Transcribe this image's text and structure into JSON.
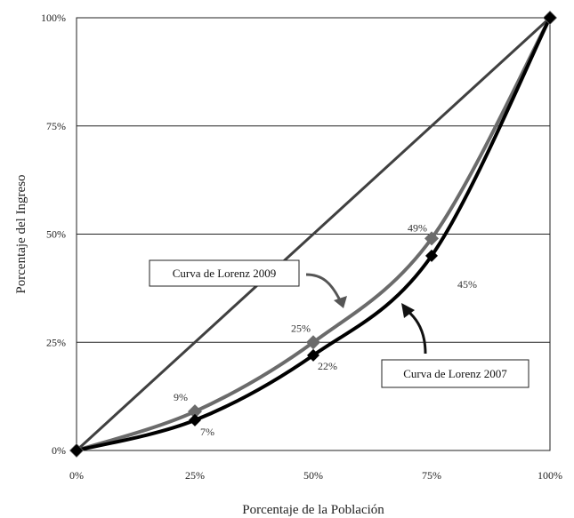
{
  "chart_data": {
    "type": "line",
    "title": "",
    "xlabel": "Porcentaje de la Población",
    "ylabel": "Porcentaje del Ingreso",
    "xlim": [
      0,
      100
    ],
    "ylim": [
      0,
      100
    ],
    "x_ticks": [
      0,
      25,
      50,
      75,
      100
    ],
    "x_tick_labels": [
      "0%",
      "25%",
      "50%",
      "75%",
      "100%"
    ],
    "y_ticks": [
      0,
      25,
      50,
      75,
      100
    ],
    "y_tick_labels": [
      "0%",
      "25%",
      "50%",
      "75%",
      "100%"
    ],
    "grid": "horizontal",
    "series": [
      {
        "values": [
          [
            0,
            0
          ],
          [
            100,
            100
          ]
        ],
        "color": "#404040"
      },
      {
        "name": "Curva de Lorenz 2009",
        "x": [
          0,
          25,
          50,
          75,
          100
        ],
        "values": [
          0,
          9,
          25,
          49,
          100
        ],
        "labels": [
          "",
          "9%",
          "25%",
          "49%",
          ""
        ],
        "color": "#6b6b6b"
      },
      {
        "name": "Curva de Lorenz 2007",
        "x": [
          0,
          25,
          50,
          75,
          100
        ],
        "values": [
          0,
          7,
          22,
          45,
          100
        ],
        "labels": [
          "",
          "7%",
          "22%",
          "45%",
          ""
        ],
        "color": "#000000"
      }
    ],
    "annotations": [
      {
        "text": "Curva de Lorenz 2009",
        "series": "Curva de Lorenz 2009"
      },
      {
        "text": "Curva de Lorenz 2007",
        "series": "Curva de Lorenz 2007"
      }
    ]
  }
}
